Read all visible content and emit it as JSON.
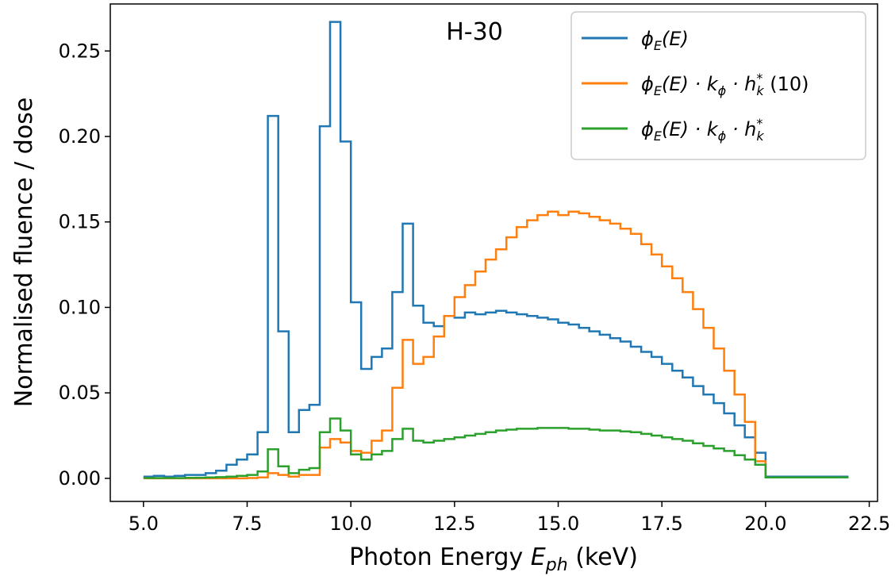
{
  "chart_data": {
    "type": "line",
    "step": "post",
    "annotation": "H-30",
    "xlabel": "Photon Energy E_ph (keV)",
    "ylabel": "Normalised fluence / dose",
    "xlim": [
      4.2,
      22.7
    ],
    "ylim": [
      -0.0135,
      0.2775
    ],
    "xticks": [
      5.0,
      7.5,
      10.0,
      12.5,
      15.0,
      17.5,
      20.0,
      22.5
    ],
    "xtick_labels": [
      "5.0",
      "7.5",
      "10.0",
      "12.5",
      "15.0",
      "17.5",
      "20.0",
      "22.5"
    ],
    "yticks": [
      0.0,
      0.05,
      0.1,
      0.15,
      0.2,
      0.25
    ],
    "ytick_labels": [
      "0.00",
      "0.05",
      "0.10",
      "0.15",
      "0.20",
      "0.25"
    ],
    "grid": false,
    "legend_position": "upper right",
    "legend": [
      {
        "label": "ϕE(E)",
        "color": "#1f77b4"
      },
      {
        "label": "ϕE(E) · kϕ · hk* (10)",
        "color": "#ff7f0e"
      },
      {
        "label": "ϕE(E) · kϕ · hk*",
        "color": "#2ca02c"
      }
    ],
    "series": [
      {
        "name": "ϕE(E)",
        "color": "#1f77b4",
        "x": [
          5.0,
          5.25,
          5.5,
          5.75,
          6.0,
          6.25,
          6.5,
          6.75,
          7.0,
          7.25,
          7.5,
          7.75,
          8.0,
          8.25,
          8.5,
          8.75,
          9.0,
          9.25,
          9.5,
          9.75,
          10.0,
          10.25,
          10.5,
          10.75,
          11.0,
          11.25,
          11.5,
          11.75,
          12.0,
          12.25,
          12.5,
          12.75,
          13.0,
          13.25,
          13.5,
          13.75,
          14.0,
          14.25,
          14.5,
          14.75,
          15.0,
          15.25,
          15.5,
          15.75,
          16.0,
          16.25,
          16.5,
          16.75,
          17.0,
          17.25,
          17.5,
          17.75,
          18.0,
          18.25,
          18.5,
          18.75,
          19.0,
          19.25,
          19.5,
          19.75,
          20.0
        ],
        "values": [
          0.001,
          0.0015,
          0.001,
          0.0015,
          0.002,
          0.002,
          0.003,
          0.0045,
          0.008,
          0.011,
          0.014,
          0.027,
          0.212,
          0.086,
          0.027,
          0.04,
          0.043,
          0.206,
          0.267,
          0.197,
          0.103,
          0.064,
          0.071,
          0.076,
          0.109,
          0.149,
          0.101,
          0.091,
          0.089,
          0.095,
          0.094,
          0.097,
          0.096,
          0.097,
          0.098,
          0.097,
          0.096,
          0.095,
          0.094,
          0.093,
          0.091,
          0.09,
          0.088,
          0.086,
          0.084,
          0.082,
          0.08,
          0.077,
          0.074,
          0.071,
          0.067,
          0.063,
          0.059,
          0.054,
          0.049,
          0.044,
          0.038,
          0.031,
          0.024,
          0.015,
          0.001
        ]
      },
      {
        "name": "ϕE(E) · kϕ · hk* (10)",
        "color": "#ff7f0e",
        "x": [
          5.0,
          5.25,
          5.5,
          5.75,
          6.0,
          6.25,
          6.5,
          6.75,
          7.0,
          7.25,
          7.5,
          7.75,
          8.0,
          8.25,
          8.5,
          8.75,
          9.0,
          9.25,
          9.5,
          9.75,
          10.0,
          10.25,
          10.5,
          10.75,
          11.0,
          11.25,
          11.5,
          11.75,
          12.0,
          12.25,
          12.5,
          12.75,
          13.0,
          13.25,
          13.5,
          13.75,
          14.0,
          14.25,
          14.5,
          14.75,
          15.0,
          15.25,
          15.5,
          15.75,
          16.0,
          16.25,
          16.5,
          16.75,
          17.0,
          17.25,
          17.5,
          17.75,
          18.0,
          18.25,
          18.5,
          18.75,
          19.0,
          19.25,
          19.5,
          19.75,
          20.0
        ],
        "values": [
          0.0,
          0.0,
          0.0,
          0.0,
          0.0,
          0.0,
          0.0,
          0.0,
          0.0,
          0.0,
          0.0002,
          0.0005,
          0.003,
          0.002,
          0.001,
          0.002,
          0.002,
          0.018,
          0.023,
          0.021,
          0.016,
          0.015,
          0.022,
          0.028,
          0.053,
          0.081,
          0.067,
          0.071,
          0.083,
          0.095,
          0.106,
          0.113,
          0.121,
          0.128,
          0.134,
          0.141,
          0.147,
          0.151,
          0.154,
          0.156,
          0.154,
          0.156,
          0.155,
          0.153,
          0.151,
          0.149,
          0.146,
          0.143,
          0.137,
          0.131,
          0.124,
          0.117,
          0.109,
          0.099,
          0.088,
          0.076,
          0.063,
          0.049,
          0.033,
          0.01,
          0.0005
        ]
      },
      {
        "name": "ϕE(E) · kϕ · hk*",
        "color": "#2ca02c",
        "x": [
          5.0,
          5.25,
          5.5,
          5.75,
          6.0,
          6.25,
          6.5,
          6.75,
          7.0,
          7.25,
          7.5,
          7.75,
          8.0,
          8.25,
          8.5,
          8.75,
          9.0,
          9.25,
          9.5,
          9.75,
          10.0,
          10.25,
          10.5,
          10.75,
          11.0,
          11.25,
          11.5,
          11.75,
          12.0,
          12.25,
          12.5,
          12.75,
          13.0,
          13.25,
          13.5,
          13.75,
          14.0,
          14.25,
          14.5,
          14.75,
          15.0,
          15.25,
          15.5,
          15.75,
          16.0,
          16.25,
          16.5,
          16.75,
          17.0,
          17.25,
          17.5,
          17.75,
          18.0,
          18.25,
          18.5,
          18.75,
          19.0,
          19.25,
          19.5,
          19.75,
          20.0
        ],
        "values": [
          0.0002,
          0.0002,
          0.0002,
          0.0002,
          0.0003,
          0.0004,
          0.0005,
          0.0007,
          0.001,
          0.0015,
          0.002,
          0.004,
          0.017,
          0.007,
          0.003,
          0.005,
          0.006,
          0.027,
          0.035,
          0.028,
          0.014,
          0.011,
          0.014,
          0.016,
          0.023,
          0.029,
          0.022,
          0.021,
          0.022,
          0.023,
          0.024,
          0.025,
          0.026,
          0.027,
          0.028,
          0.0285,
          0.029,
          0.029,
          0.0295,
          0.0295,
          0.0295,
          0.029,
          0.029,
          0.0285,
          0.028,
          0.028,
          0.0275,
          0.027,
          0.026,
          0.025,
          0.024,
          0.023,
          0.022,
          0.0205,
          0.019,
          0.0175,
          0.016,
          0.0135,
          0.011,
          0.008,
          0.0005
        ]
      }
    ],
    "tail": {
      "x_start": 20.0,
      "x_end": 22.0,
      "value": 0.0005
    }
  }
}
